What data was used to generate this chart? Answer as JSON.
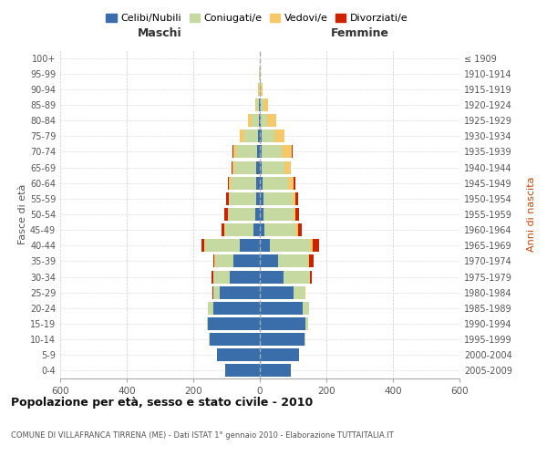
{
  "age_groups": [
    "0-4",
    "5-9",
    "10-14",
    "15-19",
    "20-24",
    "25-29",
    "30-34",
    "35-39",
    "40-44",
    "45-49",
    "50-54",
    "55-59",
    "60-64",
    "65-69",
    "70-74",
    "75-79",
    "80-84",
    "85-89",
    "90-94",
    "95-99",
    "100+"
  ],
  "birth_years": [
    "2005-2009",
    "2000-2004",
    "1995-1999",
    "1990-1994",
    "1985-1989",
    "1980-1984",
    "1975-1979",
    "1970-1974",
    "1965-1969",
    "1960-1964",
    "1955-1959",
    "1950-1954",
    "1945-1949",
    "1940-1944",
    "1935-1939",
    "1930-1934",
    "1925-1929",
    "1920-1924",
    "1915-1919",
    "1910-1914",
    "≤ 1909"
  ],
  "colors": {
    "celibi": "#3A6EAA",
    "coniugati": "#C5D9A0",
    "vedovi": "#F5C96A",
    "divorziati": "#CC2200"
  },
  "maschi": {
    "celibi": [
      105,
      130,
      150,
      155,
      140,
      120,
      90,
      80,
      60,
      20,
      15,
      12,
      10,
      10,
      8,
      5,
      3,
      2,
      1,
      1,
      0
    ],
    "coniugati": [
      0,
      0,
      3,
      5,
      15,
      20,
      50,
      55,
      105,
      85,
      80,
      80,
      78,
      68,
      62,
      42,
      22,
      8,
      3,
      1,
      0
    ],
    "vedovi": [
      0,
      0,
      0,
      0,
      1,
      1,
      1,
      1,
      2,
      2,
      2,
      2,
      4,
      5,
      10,
      12,
      10,
      5,
      2,
      1,
      0
    ],
    "divorziati": [
      0,
      0,
      0,
      0,
      0,
      1,
      5,
      5,
      8,
      8,
      10,
      8,
      5,
      1,
      1,
      1,
      0,
      0,
      0,
      0,
      0
    ]
  },
  "femmine": {
    "nubili": [
      92,
      118,
      135,
      138,
      128,
      100,
      70,
      55,
      30,
      15,
      12,
      10,
      8,
      5,
      5,
      5,
      3,
      2,
      1,
      1,
      0
    ],
    "coniugate": [
      0,
      0,
      3,
      8,
      20,
      35,
      80,
      90,
      120,
      92,
      88,
      88,
      78,
      68,
      62,
      38,
      20,
      8,
      3,
      1,
      0
    ],
    "vedove": [
      0,
      0,
      0,
      0,
      0,
      1,
      2,
      3,
      8,
      8,
      8,
      10,
      15,
      20,
      30,
      30,
      25,
      15,
      5,
      2,
      0
    ],
    "divorziate": [
      0,
      0,
      0,
      0,
      0,
      2,
      5,
      15,
      20,
      12,
      10,
      8,
      5,
      1,
      1,
      1,
      1,
      0,
      0,
      0,
      0
    ]
  },
  "xlim": 600,
  "title": "Popolazione per età, sesso e stato civile - 2010",
  "subtitle": "COMUNE DI VILLAFRANCA TIRRENA (ME) - Dati ISTAT 1° gennaio 2010 - Elaborazione TUTTAITALIA.IT",
  "ylabel_left": "Fasce di età",
  "ylabel_right": "Anni di nascita",
  "legend_labels": [
    "Celibi/Nubili",
    "Coniugati/e",
    "Vedovi/e",
    "Divorziati/e"
  ],
  "maschi_label": "Maschi",
  "femmine_label": "Femmine"
}
